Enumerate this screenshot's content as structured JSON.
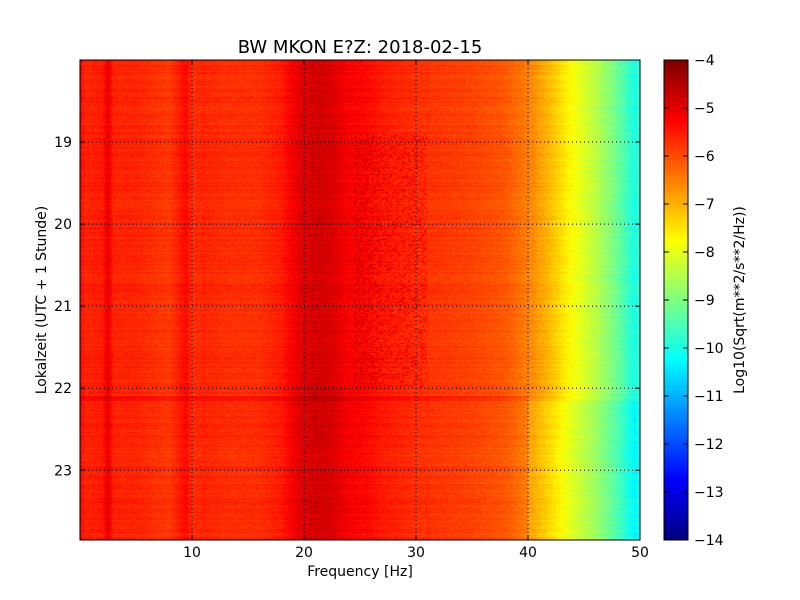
{
  "chart_data": {
    "type": "heatmap",
    "title": "BW MKON E?Z: 2018-02-15",
    "xlabel": "Frequency [Hz]",
    "ylabel": "Lokalzeit (UTC + 1 Stunde)",
    "colorbar_label": "Log10(Sqrt(m**2/s**2/Hz))",
    "xlim": [
      0,
      50
    ],
    "ylim": [
      23.85,
      18.0
    ],
    "y_inverted": true,
    "x_ticks": [
      "10",
      "20",
      "30",
      "40",
      "50"
    ],
    "x_tick_values": [
      10,
      20,
      30,
      40,
      50
    ],
    "y_ticks": [
      "19",
      "20",
      "21",
      "22",
      "23"
    ],
    "y_tick_values": [
      19,
      20,
      21,
      22,
      23
    ],
    "colorbar_ticks": [
      "-4",
      "-5",
      "-6",
      "-7",
      "-8",
      "-9",
      "-10",
      "-11",
      "-12",
      "-13",
      "-14"
    ],
    "colorbar_tick_values": [
      -4,
      -5,
      -6,
      -7,
      -8,
      -9,
      -10,
      -11,
      -12,
      -13,
      -14
    ],
    "clim": [
      -14,
      -4
    ],
    "colormap": "jet",
    "grid": true,
    "frequency_profile": {
      "x": [
        0,
        0.5,
        2,
        2.5,
        3,
        5,
        8,
        9.5,
        10,
        11,
        13,
        16,
        18,
        19.5,
        21,
        22.5,
        24,
        25.5,
        27,
        30,
        35,
        38,
        40,
        42,
        44,
        46,
        48,
        49.5,
        50
      ],
      "values": [
        -5.3,
        -5.6,
        -5.5,
        -5.0,
        -5.6,
        -5.6,
        -5.8,
        -5.3,
        -5.7,
        -5.6,
        -5.7,
        -5.7,
        -5.5,
        -5.0,
        -4.8,
        -4.9,
        -5.2,
        -5.3,
        -5.5,
        -5.7,
        -5.9,
        -6.1,
        -6.5,
        -7.1,
        -7.8,
        -8.4,
        -9.2,
        -10.0,
        -9.8
      ]
    },
    "time_events": [
      {
        "time": 22.12,
        "note": ""
      }
    ]
  }
}
